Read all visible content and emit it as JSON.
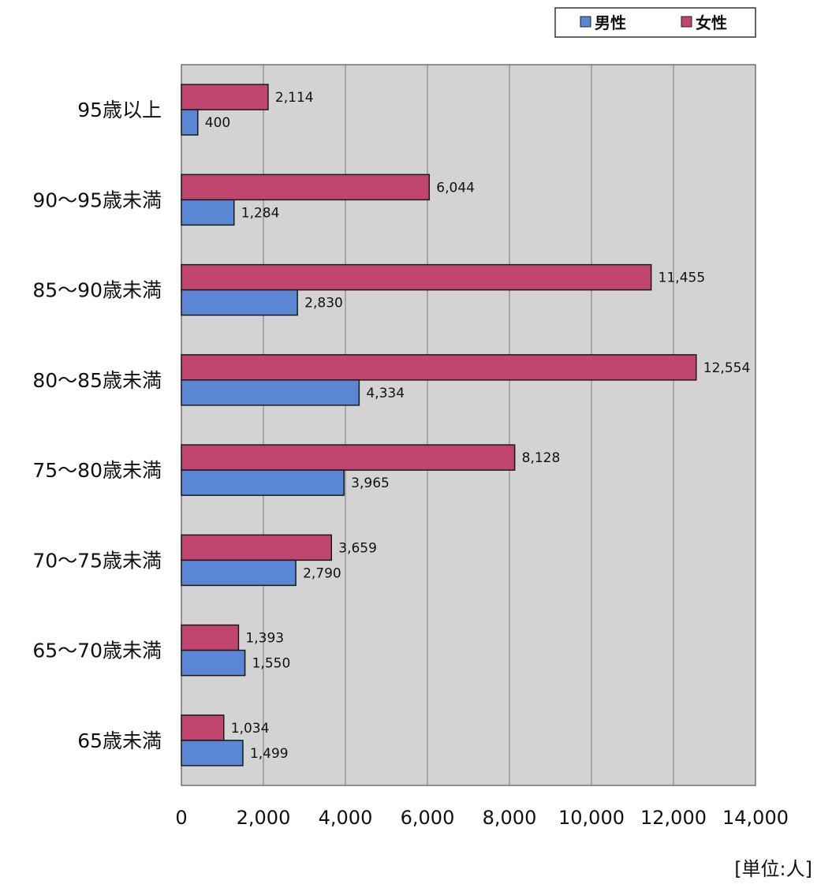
{
  "chart_data": {
    "type": "bar",
    "orientation": "horizontal",
    "categories": [
      "95歳以上",
      "90～95歳未満",
      "85～90歳未満",
      "80～85歳未満",
      "75～80歳未満",
      "70～75歳未満",
      "65～70歳未満",
      "65歳未満"
    ],
    "series": [
      {
        "name": "女性",
        "color": "#c0466f",
        "values": [
          2114,
          6044,
          11455,
          12554,
          8128,
          3659,
          1393,
          1034
        ],
        "labels": [
          "2,114",
          "6,044",
          "11,455",
          "12,554",
          "8,128",
          "3,659",
          "1,393",
          "1,034"
        ]
      },
      {
        "name": "男性",
        "color": "#5b86d4",
        "values": [
          400,
          1284,
          2830,
          4334,
          3965,
          2790,
          1550,
          1499
        ],
        "labels": [
          "400",
          "1,284",
          "2,830",
          "4,334",
          "3,965",
          "2,790",
          "1,550",
          "1,499"
        ]
      }
    ],
    "legend": [
      {
        "name": "男性",
        "color": "#5b86d4"
      },
      {
        "name": "女性",
        "color": "#c0466f"
      }
    ],
    "legend_position": "top-right",
    "xlim": [
      0,
      14000
    ],
    "xticks": [
      0,
      2000,
      4000,
      6000,
      8000,
      10000,
      12000,
      14000
    ],
    "xtick_labels": [
      "0",
      "2,000",
      "4,000",
      "6,000",
      "8,000",
      "10,000",
      "12,000",
      "14,000"
    ],
    "unit_label": "[単位:人]",
    "grid": true,
    "plot_background": "#d3d3d3"
  }
}
